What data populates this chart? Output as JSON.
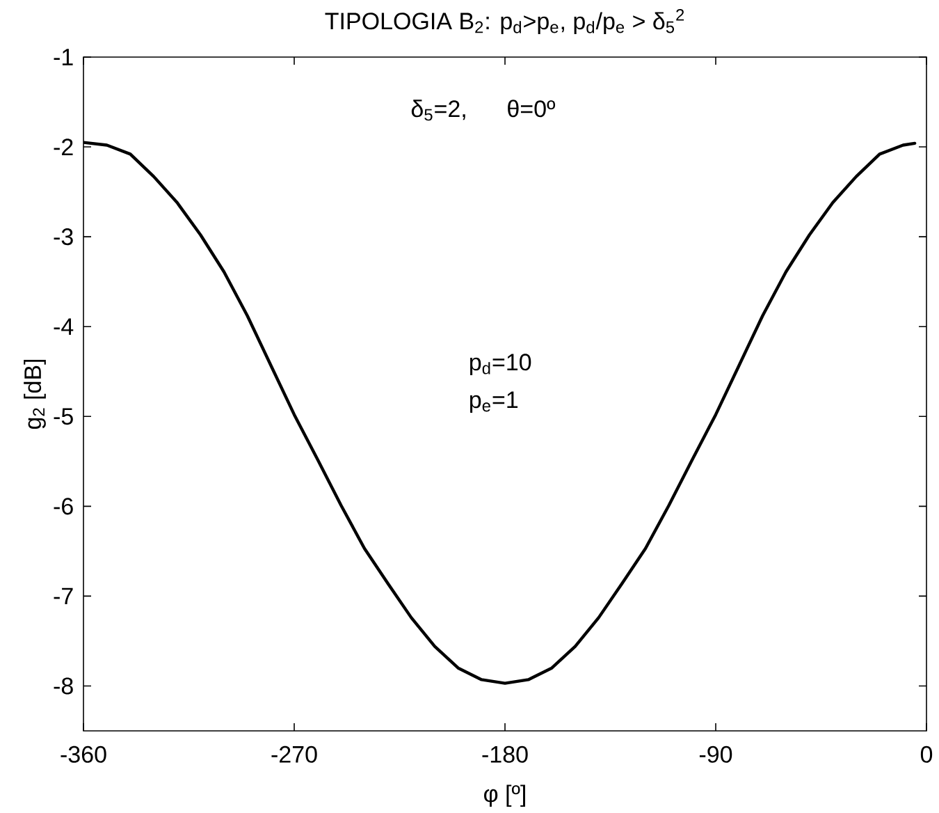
{
  "chart_data": {
    "type": "line",
    "title": "TIPOLOGIA B$_{2}$: p$_{d}$>p$_{e}$, p$_{d}$/p$_{e}$ > δ$_{5}$$^{2}$",
    "xlabel": "φ [º]",
    "ylabel": "g$_{2}$ [dB]",
    "annotations": [
      "δ$_{5}$=2,",
      "θ=0º",
      "p$_{d}$=10",
      "p$_{e}$=1"
    ],
    "x": [
      -360,
      -350,
      -340,
      -330,
      -320,
      -310,
      -300,
      -290,
      -280,
      -270,
      -260,
      -250,
      -240,
      -230,
      -220,
      -210,
      -200,
      -190,
      -180,
      -170,
      -160,
      -150,
      -140,
      -130,
      -120,
      -110,
      -100,
      -90,
      -80,
      -70,
      -60,
      -50,
      -40,
      -30,
      -20,
      -10,
      -5
    ],
    "series": [
      {
        "color": "#000000",
        "values": [
          -1.95,
          -1.98,
          -2.08,
          -2.33,
          -2.62,
          -2.98,
          -3.39,
          -3.88,
          -4.43,
          -4.98,
          -5.48,
          -5.99,
          -6.47,
          -6.86,
          -7.24,
          -7.56,
          -7.8,
          -7.93,
          -7.97,
          -7.93,
          -7.8,
          -7.56,
          -7.24,
          -6.86,
          -6.47,
          -5.99,
          -5.48,
          -4.98,
          -4.43,
          -3.88,
          -3.39,
          -2.98,
          -2.62,
          -2.33,
          -2.08,
          -1.98,
          -1.96
        ]
      }
    ],
    "xlim": [
      -360,
      0
    ],
    "ylim": [
      -8.5,
      -1
    ],
    "xticks": [
      -360,
      -270,
      -180,
      -90,
      0
    ],
    "yticks": [
      -8,
      -7,
      -6,
      -5,
      -4,
      -3,
      -2,
      -1
    ]
  }
}
